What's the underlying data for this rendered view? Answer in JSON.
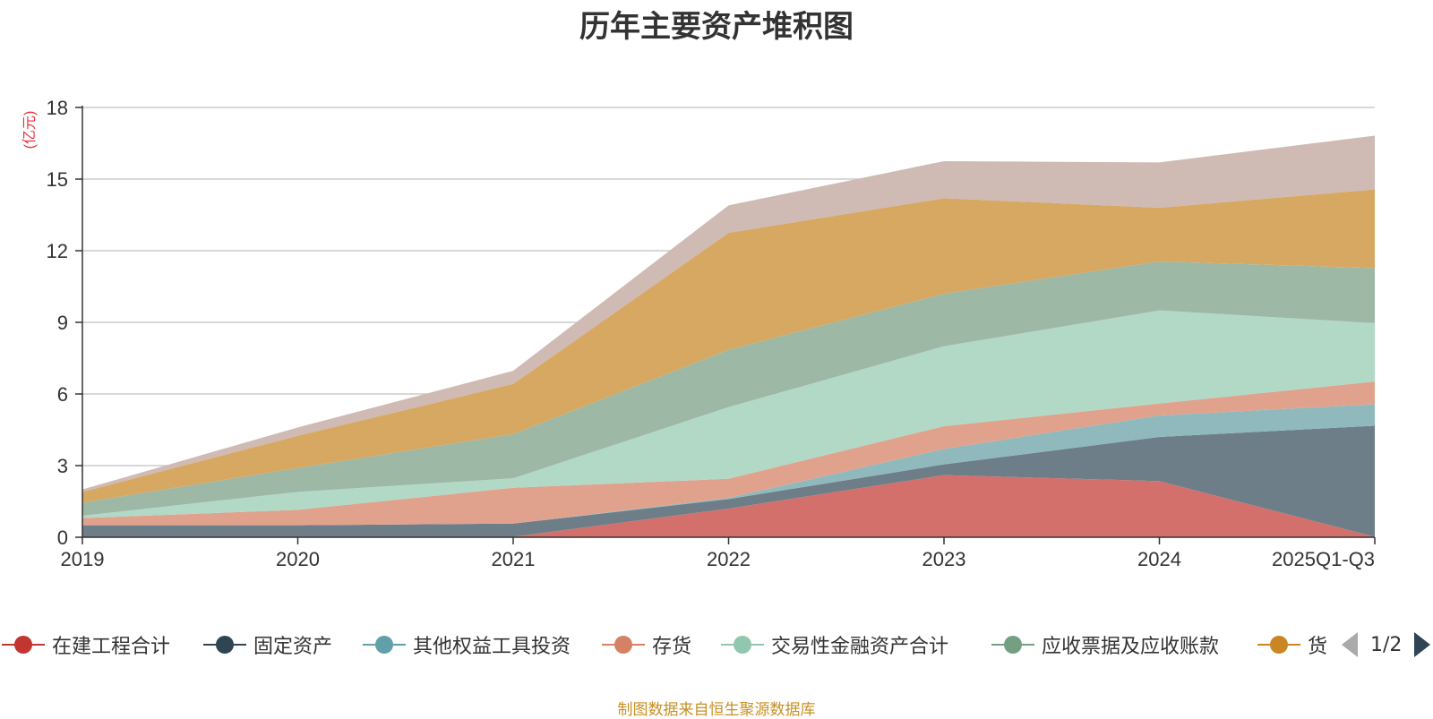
{
  "chart_data": {
    "type": "area",
    "stacked": true,
    "title": "历年主要资产堆积图",
    "ylabel": "(亿元)",
    "xlabel": "",
    "ylim": [
      0,
      18
    ],
    "yticks": [
      0,
      3,
      6,
      9,
      12,
      15,
      18
    ],
    "categories": [
      "2019",
      "2020",
      "2021",
      "2022",
      "2023",
      "2024",
      "2025Q1-Q3"
    ],
    "grid": true,
    "legend_position": "bottom",
    "series": [
      {
        "name": "在建工程合计",
        "color": "#c23531",
        "fill": "#d4706b",
        "values": [
          0.0,
          0.0,
          0.02,
          1.2,
          2.6,
          2.35,
          0.02
        ]
      },
      {
        "name": "固定资产",
        "color": "#2f4554",
        "fill": "#6e7e88",
        "values": [
          0.5,
          0.5,
          0.55,
          0.4,
          0.45,
          1.85,
          4.65
        ]
      },
      {
        "name": "其他权益工具投资",
        "color": "#61a0a8",
        "fill": "#8fb9bd",
        "values": [
          0.0,
          0.0,
          0.0,
          0.05,
          0.65,
          0.9,
          0.9
        ]
      },
      {
        "name": "存货",
        "color": "#d48265",
        "fill": "#e0a28c",
        "values": [
          0.3,
          0.65,
          1.5,
          0.8,
          0.95,
          0.5,
          0.95
        ]
      },
      {
        "name": "交易性金融资产合计",
        "color": "#91c7ae",
        "fill": "#b2d8c6",
        "values": [
          0.1,
          0.75,
          0.4,
          3.0,
          3.35,
          3.9,
          2.45
        ]
      },
      {
        "name": "应收票据及应收账款",
        "color": "#749f83",
        "fill": "#9db8a5",
        "values": [
          0.55,
          1.0,
          1.85,
          2.4,
          2.2,
          2.05,
          2.3
        ]
      },
      {
        "name": "货",
        "color": "#ca8622",
        "fill": "#d7a862",
        "values": [
          0.45,
          1.35,
          2.1,
          4.9,
          4.0,
          2.25,
          3.3
        ]
      },
      {
        "name": "",
        "color": "#bda29a",
        "fill": "#cfbab4",
        "values": [
          0.1,
          0.35,
          0.55,
          1.15,
          1.55,
          1.9,
          2.25
        ]
      }
    ]
  },
  "legend": {
    "page_indicator": "1/2"
  },
  "source_note": "制图数据来自恒生聚源数据库",
  "colors": {
    "axis": "#333333",
    "grid": "#cccccc",
    "unit_label": "#e5323e",
    "source_note": "#c79025"
  }
}
